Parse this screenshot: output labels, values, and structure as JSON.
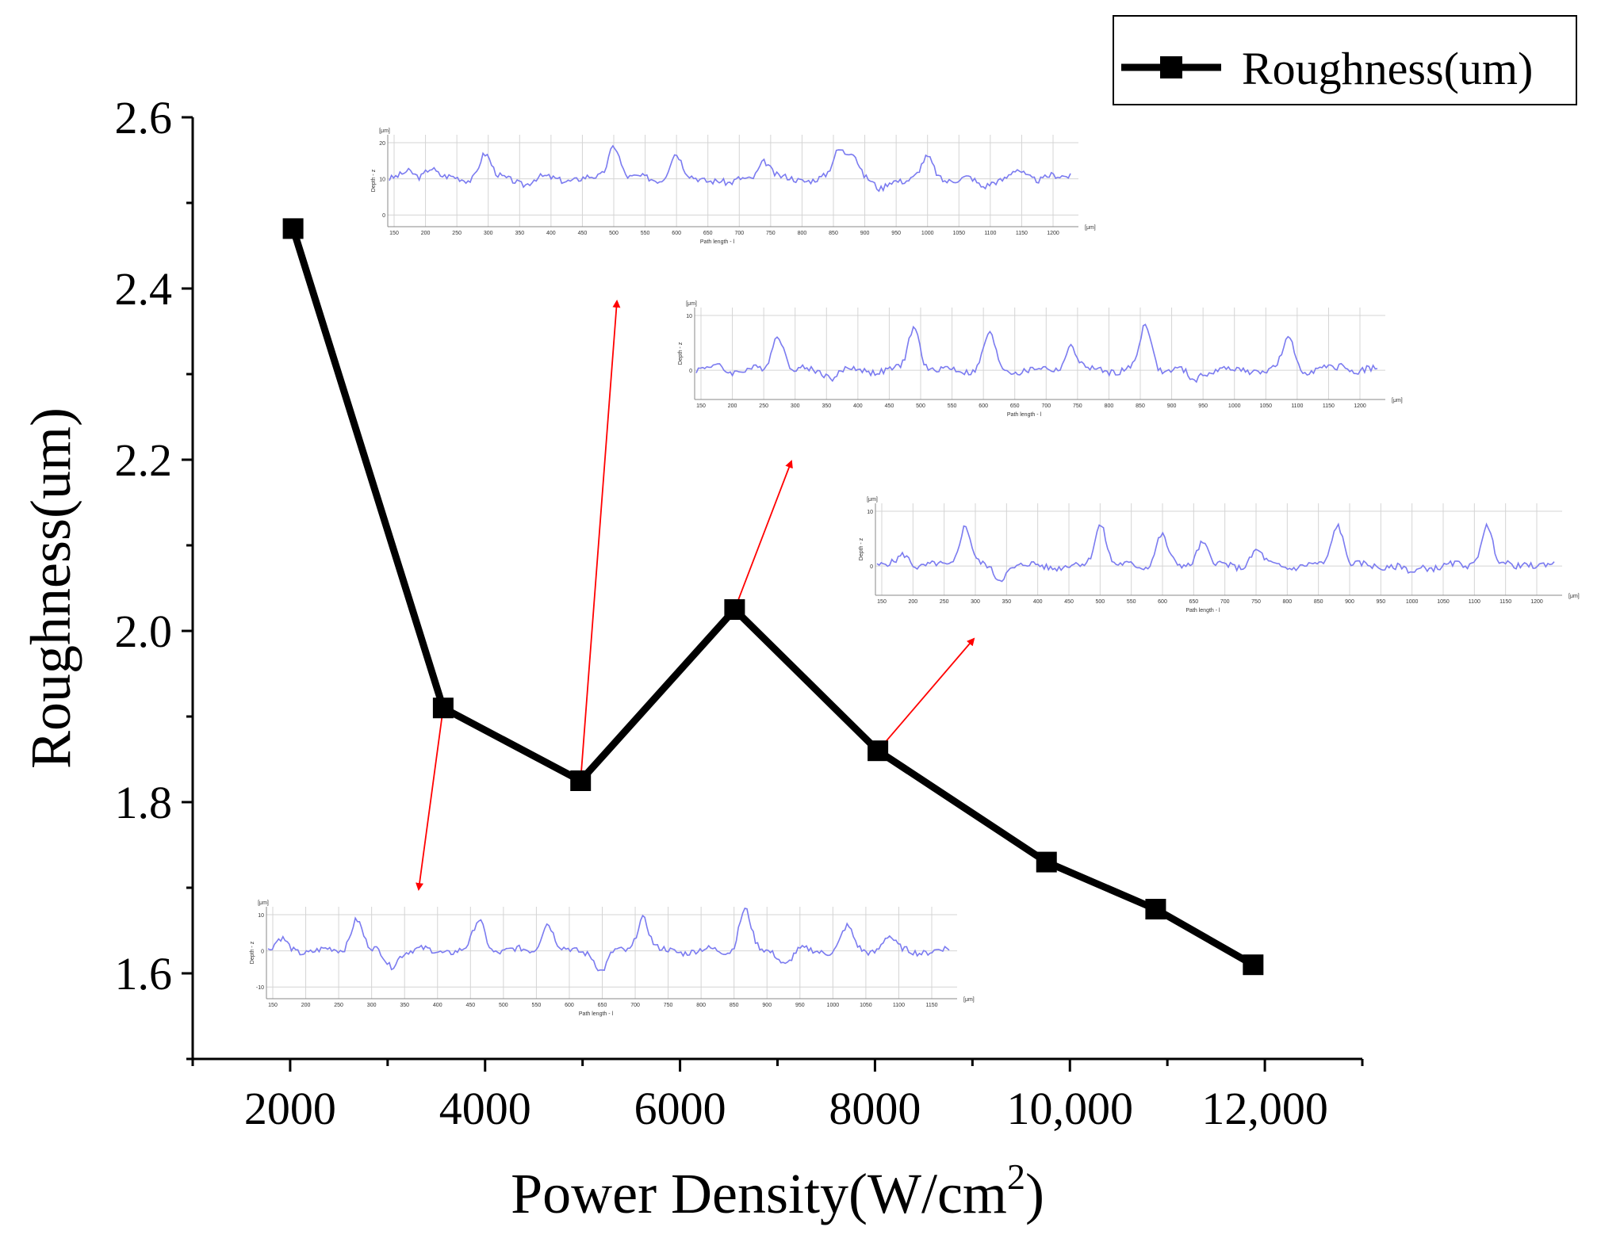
{
  "chart_data": {
    "type": "line",
    "xlabel": "Power Density(W/cm",
    "xlabel_sup": "2",
    "xlabel_close": ")",
    "ylabel": "Roughness(um)",
    "xlim": [
      1000,
      13000
    ],
    "ylim": [
      1.5,
      2.6
    ],
    "x_ticks": [
      2000,
      4000,
      6000,
      8000,
      10000,
      12000
    ],
    "x_tick_labels": [
      "2000",
      "4000",
      "6000",
      "8000",
      "10,000",
      "12,000"
    ],
    "y_ticks": [
      1.6,
      1.8,
      2.0,
      2.2,
      2.4,
      2.6
    ],
    "y_tick_labels": [
      "1.6",
      "1.8",
      "2.0",
      "2.2",
      "2.4",
      "2.6"
    ],
    "grid": false,
    "legend_position": "top-right",
    "series": [
      {
        "name": "Roughness(um)",
        "color": "#000000",
        "marker": "square",
        "x": [
          2030,
          3570,
          4980,
          6560,
          8030,
          9760,
          10880,
          11880
        ],
        "y": [
          2.47,
          1.91,
          1.825,
          2.025,
          1.86,
          1.73,
          1.675,
          1.61
        ]
      }
    ],
    "insets": [
      {
        "y_unit": "[μm]",
        "x_unit": "[μm]",
        "ylabel": "Depth - z",
        "xlabel": "Path length - l",
        "y_ticks": [
          "20",
          "10",
          "0"
        ],
        "x_ticks": [
          "150",
          "200",
          "250",
          "300",
          "350",
          "400",
          "450",
          "500",
          "550",
          "600",
          "650",
          "700",
          "750",
          "800",
          "850",
          "900",
          "950",
          "1000",
          "1050",
          "1100",
          "1150",
          "1200"
        ]
      },
      {
        "y_unit": "[μm]",
        "x_unit": "[μm]",
        "ylabel": "Depth - z",
        "xlabel": "Path length - l",
        "y_ticks": [
          "10",
          "0"
        ],
        "x_ticks": [
          "150",
          "200",
          "250",
          "300",
          "350",
          "400",
          "450",
          "500",
          "550",
          "600",
          "650",
          "700",
          "750",
          "800",
          "850",
          "900",
          "950",
          "1000",
          "1050",
          "1100",
          "1150",
          "1200"
        ]
      },
      {
        "y_unit": "[μm]",
        "x_unit": "[μm]",
        "ylabel": "Depth - z",
        "xlabel": "Path length - l",
        "y_ticks": [
          "10",
          "0"
        ],
        "x_ticks": [
          "150",
          "200",
          "250",
          "300",
          "350",
          "400",
          "450",
          "500",
          "550",
          "600",
          "650",
          "700",
          "750",
          "800",
          "850",
          "900",
          "950",
          "1000",
          "1050",
          "1100",
          "1150",
          "1200"
        ]
      },
      {
        "y_unit": "[μm]",
        "x_unit": "[μm]",
        "ylabel": "Depth - z",
        "xlabel": "Path length - l",
        "y_ticks": [
          "10",
          "0",
          "-10"
        ],
        "x_ticks": [
          "150",
          "200",
          "250",
          "300",
          "350",
          "400",
          "450",
          "500",
          "550",
          "600",
          "650",
          "700",
          "750",
          "800",
          "850",
          "900",
          "950",
          "1000",
          "1050",
          "1100",
          "1150"
        ]
      }
    ],
    "colors": {
      "series": "#000000",
      "inset_trace": "#7b7bf0",
      "arrow": "#ff0000"
    }
  }
}
